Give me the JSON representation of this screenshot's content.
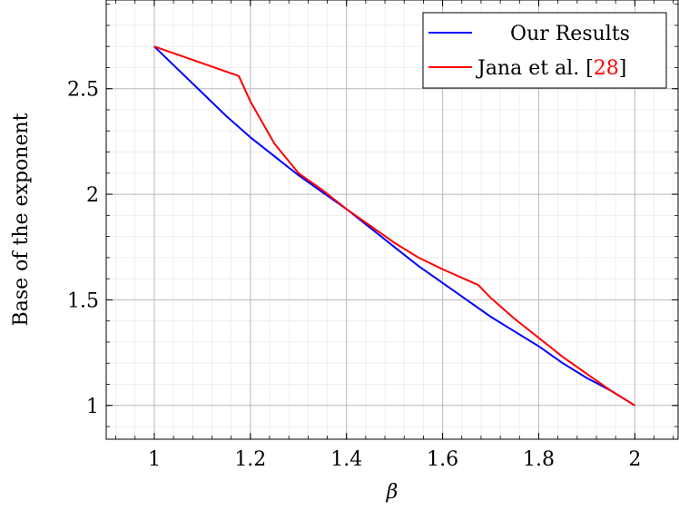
{
  "chart_data": {
    "type": "line",
    "xlabel": "β",
    "ylabel": "Base of the exponent",
    "xlim": [
      0.9,
      2.09
    ],
    "ylim": [
      0.84,
      2.92
    ],
    "x_ticks": [
      1,
      1.2,
      1.4,
      1.6,
      1.8,
      2
    ],
    "x_tick_labels": [
      "1",
      "1.2",
      "1.4",
      "1.6",
      "1.8",
      "2"
    ],
    "y_ticks": [
      1,
      1.5,
      2,
      2.5
    ],
    "y_tick_labels": [
      "1",
      "1.5",
      "2",
      "2.5"
    ],
    "grid": true,
    "minor_grid": true,
    "legend_position": "top-right",
    "series": [
      {
        "name": "Our Results",
        "color": "#0000ff",
        "x": [
          1.0,
          1.05,
          1.1,
          1.15,
          1.2,
          1.25,
          1.3,
          1.35,
          1.4,
          1.45,
          1.5,
          1.55,
          1.6,
          1.65,
          1.7,
          1.75,
          1.8,
          1.85,
          1.9,
          1.95,
          2.0
        ],
        "y": [
          2.7,
          2.59,
          2.48,
          2.37,
          2.27,
          2.18,
          2.09,
          2.01,
          1.93,
          1.84,
          1.75,
          1.66,
          1.58,
          1.5,
          1.42,
          1.35,
          1.28,
          1.2,
          1.13,
          1.07,
          1.0
        ]
      },
      {
        "name": "Jana et al. [28]",
        "name_main": "Jana et al. [",
        "name_ref": "28",
        "name_close": "]",
        "color": "#ff0000",
        "x": [
          1.0,
          1.176,
          1.2,
          1.25,
          1.3,
          1.35,
          1.4,
          1.45,
          1.5,
          1.55,
          1.6,
          1.674,
          1.7,
          1.75,
          1.8,
          1.85,
          1.9,
          1.95,
          2.0
        ],
        "y": [
          2.7,
          2.56,
          2.44,
          2.24,
          2.1,
          2.02,
          1.93,
          1.85,
          1.77,
          1.7,
          1.645,
          1.57,
          1.51,
          1.41,
          1.32,
          1.23,
          1.15,
          1.07,
          1.0
        ]
      }
    ]
  }
}
